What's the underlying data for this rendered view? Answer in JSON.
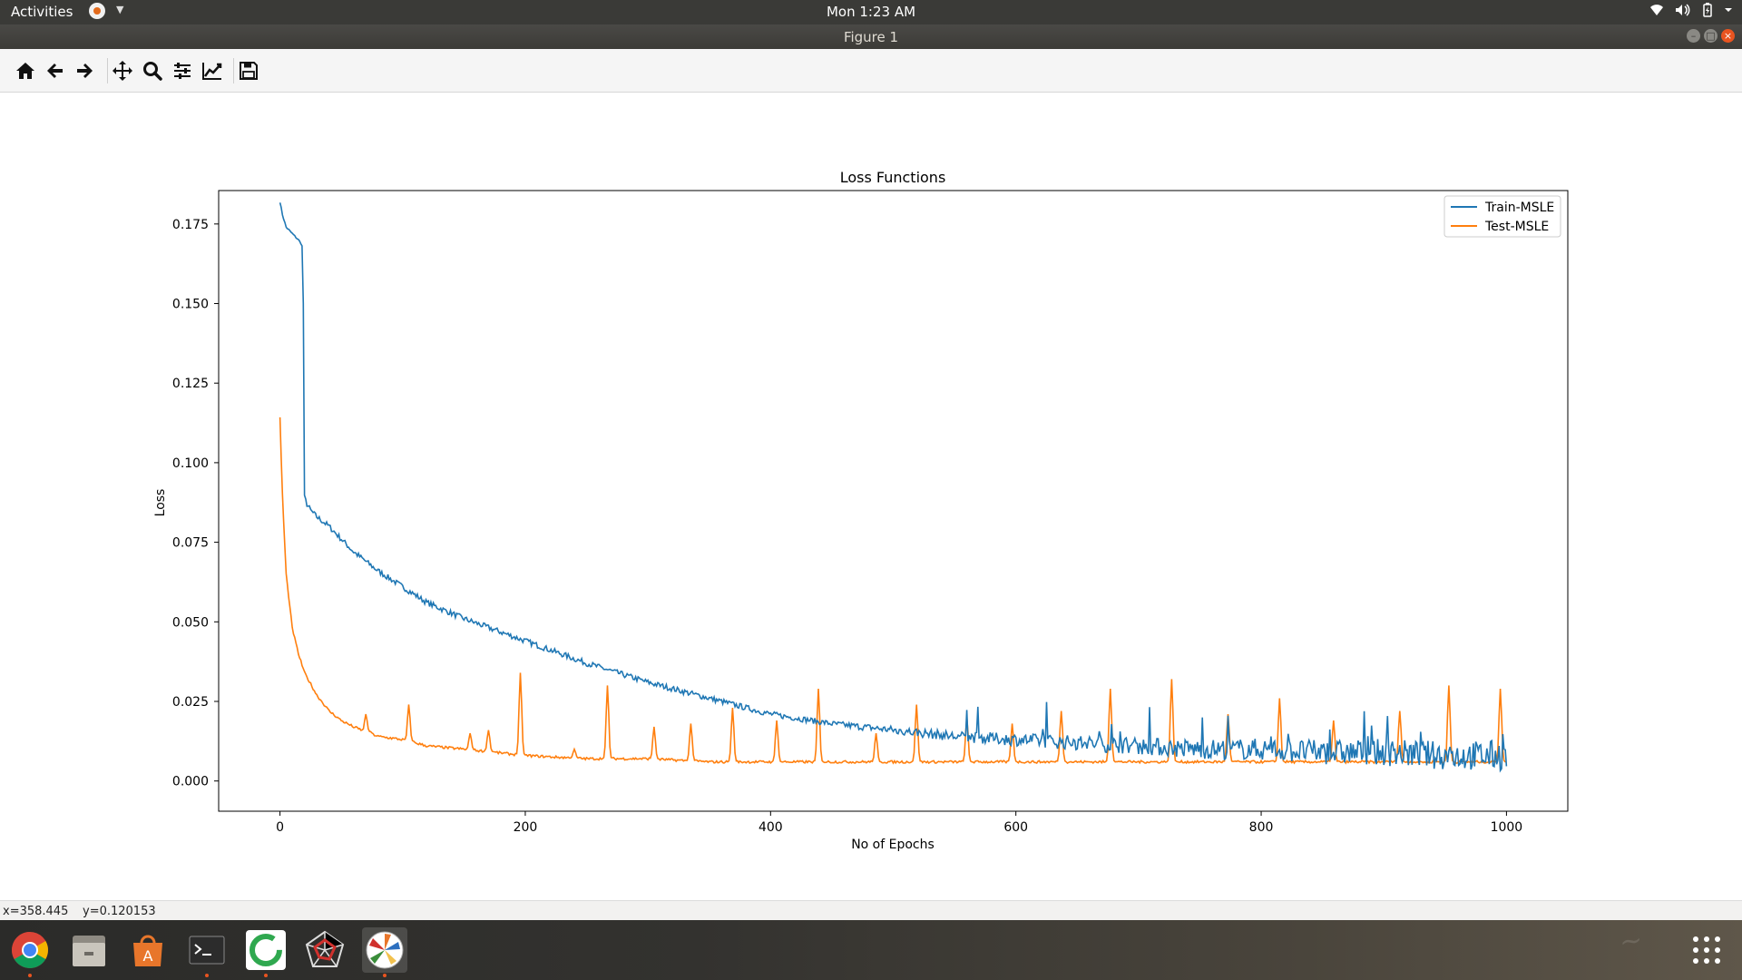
{
  "topbar": {
    "activities": "Activities",
    "clock": "Mon  1:23 AM"
  },
  "window": {
    "title": "Figure 1"
  },
  "toolbar": {
    "buttons": [
      "home-icon",
      "back-icon",
      "forward-icon",
      "pan-icon",
      "zoom-icon",
      "configure-subplots-icon",
      "edit-axis-icon",
      "save-icon"
    ]
  },
  "statusbar": {
    "x_readout": "x=358.445",
    "y_readout": "y=0.120153"
  },
  "dock": {
    "apps": [
      "chrome-icon",
      "files-icon",
      "software-center-icon",
      "terminal-icon",
      "green-app-icon",
      "network-app-icon",
      "matplotlib-icon"
    ]
  },
  "chart_data": {
    "type": "line",
    "title": "Loss Functions",
    "xlabel": "No of Epochs",
    "ylabel": "Loss",
    "xlim": [
      -50,
      1050
    ],
    "ylim": [
      -0.0095,
      0.1855
    ],
    "xticks": [
      0,
      200,
      400,
      600,
      800,
      1000
    ],
    "yticks": [
      0.0,
      0.025,
      0.05,
      0.075,
      0.1,
      0.125,
      0.15,
      0.175
    ],
    "legend": "top-right",
    "grid": false,
    "series": [
      {
        "name": "Train-MSLE",
        "color": "#1f77b4",
        "x": [
          0,
          2,
          5,
          10,
          15,
          17,
          18,
          19,
          20,
          22,
          25,
          30,
          40,
          50,
          60,
          70,
          80,
          100,
          120,
          150,
          200,
          250,
          300,
          350,
          400,
          450,
          500,
          550,
          600,
          650,
          700,
          750,
          800,
          850,
          900,
          950,
          1000
        ],
        "y": [
          0.182,
          0.178,
          0.174,
          0.172,
          0.17,
          0.169,
          0.168,
          0.15,
          0.089,
          0.087,
          0.085,
          0.083,
          0.08,
          0.076,
          0.072,
          0.069,
          0.066,
          0.061,
          0.056,
          0.051,
          0.044,
          0.037,
          0.031,
          0.026,
          0.021,
          0.018,
          0.016,
          0.014,
          0.013,
          0.012,
          0.011,
          0.01,
          0.01,
          0.009,
          0.009,
          0.008,
          0.008
        ]
      },
      {
        "name": "Test-MSLE",
        "color": "#ff7f0e",
        "x": [
          0,
          2,
          5,
          10,
          15,
          20,
          30,
          40,
          50,
          60,
          80,
          100,
          120,
          150,
          200,
          250,
          300,
          350,
          400,
          450,
          500,
          550,
          600,
          650,
          700,
          750,
          800,
          850,
          900,
          950,
          1000
        ],
        "y": [
          0.114,
          0.09,
          0.065,
          0.048,
          0.04,
          0.034,
          0.027,
          0.022,
          0.019,
          0.017,
          0.014,
          0.013,
          0.011,
          0.01,
          0.008,
          0.007,
          0.007,
          0.006,
          0.006,
          0.006,
          0.006,
          0.006,
          0.006,
          0.006,
          0.006,
          0.006,
          0.006,
          0.006,
          0.006,
          0.006,
          0.006
        ],
        "spikes": [
          [
            70,
            0.021
          ],
          [
            105,
            0.024
          ],
          [
            155,
            0.015
          ],
          [
            170,
            0.016
          ],
          [
            196,
            0.034
          ],
          [
            240,
            0.01
          ],
          [
            267,
            0.03
          ],
          [
            305,
            0.017
          ],
          [
            335,
            0.018
          ],
          [
            369,
            0.023
          ],
          [
            405,
            0.019
          ],
          [
            439,
            0.029
          ],
          [
            486,
            0.015
          ],
          [
            519,
            0.024
          ],
          [
            560,
            0.02
          ],
          [
            597,
            0.018
          ],
          [
            637,
            0.022
          ],
          [
            677,
            0.029
          ],
          [
            727,
            0.032
          ],
          [
            773,
            0.021
          ],
          [
            815,
            0.026
          ],
          [
            859,
            0.019
          ],
          [
            913,
            0.022
          ],
          [
            953,
            0.03
          ],
          [
            995,
            0.029
          ]
        ]
      }
    ]
  }
}
